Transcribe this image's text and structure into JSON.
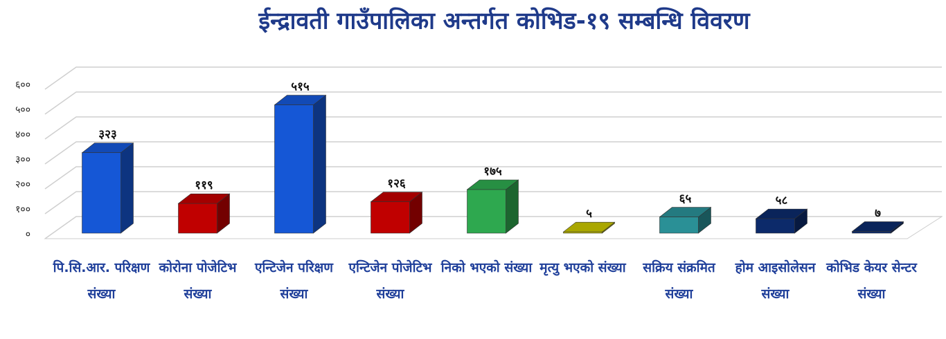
{
  "chart_data": {
    "type": "bar3d",
    "title": "ईन्द्रावती गाउँपालिका अन्तर्गत कोभिड-१९ सम्बन्धि  विवरण",
    "categories": [
      "पि.सि.आर. परिक्षण संख्या",
      "कोरोना पोजेटिभ संख्या",
      "एन्टिजेन परिक्षण संख्या",
      "एन्टिजेन पोजेटिभ संख्या",
      "निको भएको संख्या",
      "मृत्यु भएको संख्या",
      "सक्रिय संक्रमित संख्या",
      "होम आइसोलेसन संख्या",
      "कोभिड केयर सेन्टर संख्या"
    ],
    "values": [
      323,
      119,
      515,
      126,
      175,
      5,
      65,
      58,
      7
    ],
    "value_labels": [
      "३२३",
      "११९",
      "५१५",
      "१२६",
      "१७५",
      "५",
      "६५",
      "५८",
      "७"
    ],
    "colors": [
      "#1557d6",
      "#c00000",
      "#1557d6",
      "#c00000",
      "#2ea84f",
      "#c8c400",
      "#2a9096",
      "#0c2a6a",
      "#0c2a6a"
    ],
    "ylim": [
      0,
      600
    ],
    "yticks": [
      {
        "value": 0,
        "label": "०"
      },
      {
        "value": 100,
        "label": "१००"
      },
      {
        "value": 200,
        "label": "२००"
      },
      {
        "value": 300,
        "label": "३००"
      },
      {
        "value": 400,
        "label": "४००"
      },
      {
        "value": 500,
        "label": "५००"
      },
      {
        "value": 600,
        "label": "६००"
      }
    ],
    "grid": true
  }
}
